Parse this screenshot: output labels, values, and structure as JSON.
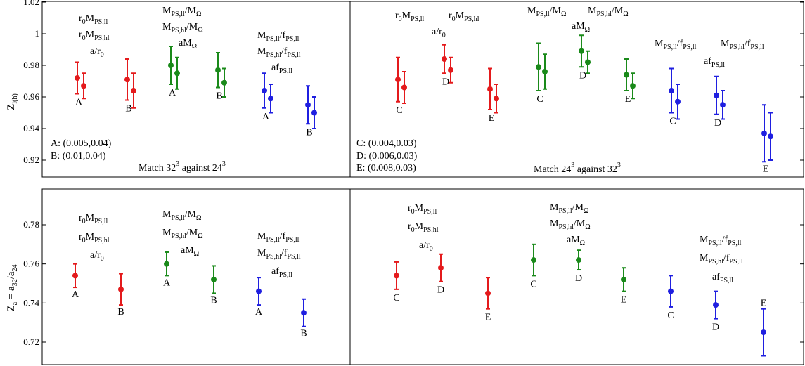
{
  "colors": {
    "red": "#e41a1c",
    "green": "#1a8a1a",
    "blue": "#1f1fe0"
  },
  "ylabels": {
    "top": {
      "main": "Z",
      "sub": "l(h)"
    },
    "bottom": {
      "main": "Z",
      "sub_a": "a",
      "mid": " = a",
      "sub_32": "32",
      "slash": "/a",
      "sub_24": "24"
    }
  },
  "panel_titles": {
    "top_left": {
      "t1": "Match 32",
      "sup1": "3",
      "t2": " against 24",
      "sup2": "3"
    },
    "top_right": {
      "t1": "Match 24",
      "sup1": "3",
      "t2": " against 32",
      "sup2": "3"
    }
  },
  "legend_left": [
    "A: (0.005,0.04)",
    "B: (0.01,0.04)"
  ],
  "legend_right": [
    "C: (0.004,0.03)",
    "D: (0.006,0.03)",
    "E: (0.008,0.03)"
  ],
  "strings": {
    "r0": "r",
    "sub0": "0",
    "M": "M",
    "PSll": "PS,ll",
    "PShl": "PS,hl",
    "a_r0": "a/r",
    "Omega": "Ω",
    "slashM": "/M",
    "slashf": "/f",
    "aM": "aM",
    "af": "af"
  },
  "chart_data": [
    {
      "type": "scatter",
      "panel": "top-left",
      "ylim": [
        0.91,
        1.02
      ],
      "yticks": [
        0.92,
        0.94,
        0.96,
        0.98,
        1.0,
        1.02
      ],
      "ytick_labels": [
        "0.92",
        "0.94",
        "0.96",
        "0.98",
        "1",
        "1.02"
      ],
      "grid": false,
      "points": [
        {
          "group": "r0M",
          "color": "red",
          "label": "A",
          "y1": 0.972,
          "e1": 0.01,
          "y2": 0.967,
          "e2": 0.008
        },
        {
          "group": "r0M",
          "color": "red",
          "label": "B",
          "y1": 0.971,
          "e1": 0.013,
          "y2": 0.964,
          "e2": 0.011
        },
        {
          "group": "MOmega",
          "color": "green",
          "label": "A",
          "y1": 0.98,
          "e1": 0.012,
          "y2": 0.975,
          "e2": 0.01
        },
        {
          "group": "MOmega",
          "color": "green",
          "label": "B",
          "y1": 0.977,
          "e1": 0.011,
          "y2": 0.969,
          "e2": 0.009
        },
        {
          "group": "Mf",
          "color": "blue",
          "label": "A",
          "y1": 0.964,
          "e1": 0.011,
          "y2": 0.959,
          "e2": 0.009
        },
        {
          "group": "Mf",
          "color": "blue",
          "label": "B",
          "y1": 0.955,
          "e1": 0.012,
          "y2": 0.95,
          "e2": 0.01
        }
      ]
    },
    {
      "type": "scatter",
      "panel": "top-right",
      "ylim": [
        0.91,
        1.02
      ],
      "points": [
        {
          "group": "r0M",
          "color": "red",
          "label": "C",
          "y1": 0.971,
          "e1": 0.014,
          "y2": 0.966,
          "e2": 0.01
        },
        {
          "group": "r0M",
          "color": "red",
          "label": "D",
          "y1": 0.984,
          "e1": 0.009,
          "y2": 0.977,
          "e2": 0.008
        },
        {
          "group": "r0M",
          "color": "red",
          "label": "E",
          "y1": 0.965,
          "e1": 0.013,
          "y2": 0.959,
          "e2": 0.009
        },
        {
          "group": "MOmega",
          "color": "green",
          "label": "C",
          "y1": 0.979,
          "e1": 0.015,
          "y2": 0.976,
          "e2": 0.011
        },
        {
          "group": "MOmega",
          "color": "green",
          "label": "D",
          "y1": 0.989,
          "e1": 0.01,
          "y2": 0.982,
          "e2": 0.007
        },
        {
          "group": "MOmega",
          "color": "green",
          "label": "E",
          "y1": 0.974,
          "e1": 0.01,
          "y2": 0.967,
          "e2": 0.008
        },
        {
          "group": "Mf",
          "color": "blue",
          "label": "C",
          "y1": 0.964,
          "e1": 0.014,
          "y2": 0.957,
          "e2": 0.011
        },
        {
          "group": "Mf",
          "color": "blue",
          "label": "D",
          "y1": 0.961,
          "e1": 0.012,
          "y2": 0.955,
          "e2": 0.009
        },
        {
          "group": "Mf",
          "color": "blue",
          "label": "E",
          "y1": 0.937,
          "e1": 0.018,
          "y2": 0.935,
          "e2": 0.015
        }
      ]
    },
    {
      "type": "scatter",
      "panel": "bottom-left",
      "ylim": [
        0.71,
        0.795
      ],
      "yticks": [
        0.72,
        0.74,
        0.76,
        0.78
      ],
      "ytick_labels": [
        "0.72",
        "0.74",
        "0.76",
        "0.78"
      ],
      "grid": false,
      "points": [
        {
          "group": "r0M",
          "color": "red",
          "label": "A",
          "y": 0.754,
          "e": 0.006
        },
        {
          "group": "r0M",
          "color": "red",
          "label": "B",
          "y": 0.747,
          "e": 0.008
        },
        {
          "group": "MOmega",
          "color": "green",
          "label": "A",
          "y": 0.76,
          "e": 0.006
        },
        {
          "group": "MOmega",
          "color": "green",
          "label": "B",
          "y": 0.752,
          "e": 0.007
        },
        {
          "group": "Mf",
          "color": "blue",
          "label": "A",
          "y": 0.746,
          "e": 0.007
        },
        {
          "group": "Mf",
          "color": "blue",
          "label": "B",
          "y": 0.735,
          "e": 0.007
        }
      ]
    },
    {
      "type": "scatter",
      "panel": "bottom-right",
      "ylim": [
        0.71,
        0.795
      ],
      "points": [
        {
          "group": "r0M",
          "color": "red",
          "label": "C",
          "y": 0.754,
          "e": 0.007
        },
        {
          "group": "r0M",
          "color": "red",
          "label": "D",
          "y": 0.758,
          "e": 0.007
        },
        {
          "group": "r0M",
          "color": "red",
          "label": "E",
          "y": 0.745,
          "e": 0.008
        },
        {
          "group": "MOmega",
          "color": "green",
          "label": "C",
          "y": 0.762,
          "e": 0.008
        },
        {
          "group": "MOmega",
          "color": "green",
          "label": "D",
          "y": 0.762,
          "e": 0.005
        },
        {
          "group": "MOmega",
          "color": "green",
          "label": "E",
          "y": 0.752,
          "e": 0.006
        },
        {
          "group": "Mf",
          "color": "blue",
          "label": "C",
          "y": 0.746,
          "e": 0.008
        },
        {
          "group": "Mf",
          "color": "blue",
          "label": "D",
          "y": 0.739,
          "e": 0.007
        },
        {
          "group": "Mf",
          "color": "blue",
          "label": "E",
          "y": 0.725,
          "e": 0.012
        }
      ]
    }
  ]
}
